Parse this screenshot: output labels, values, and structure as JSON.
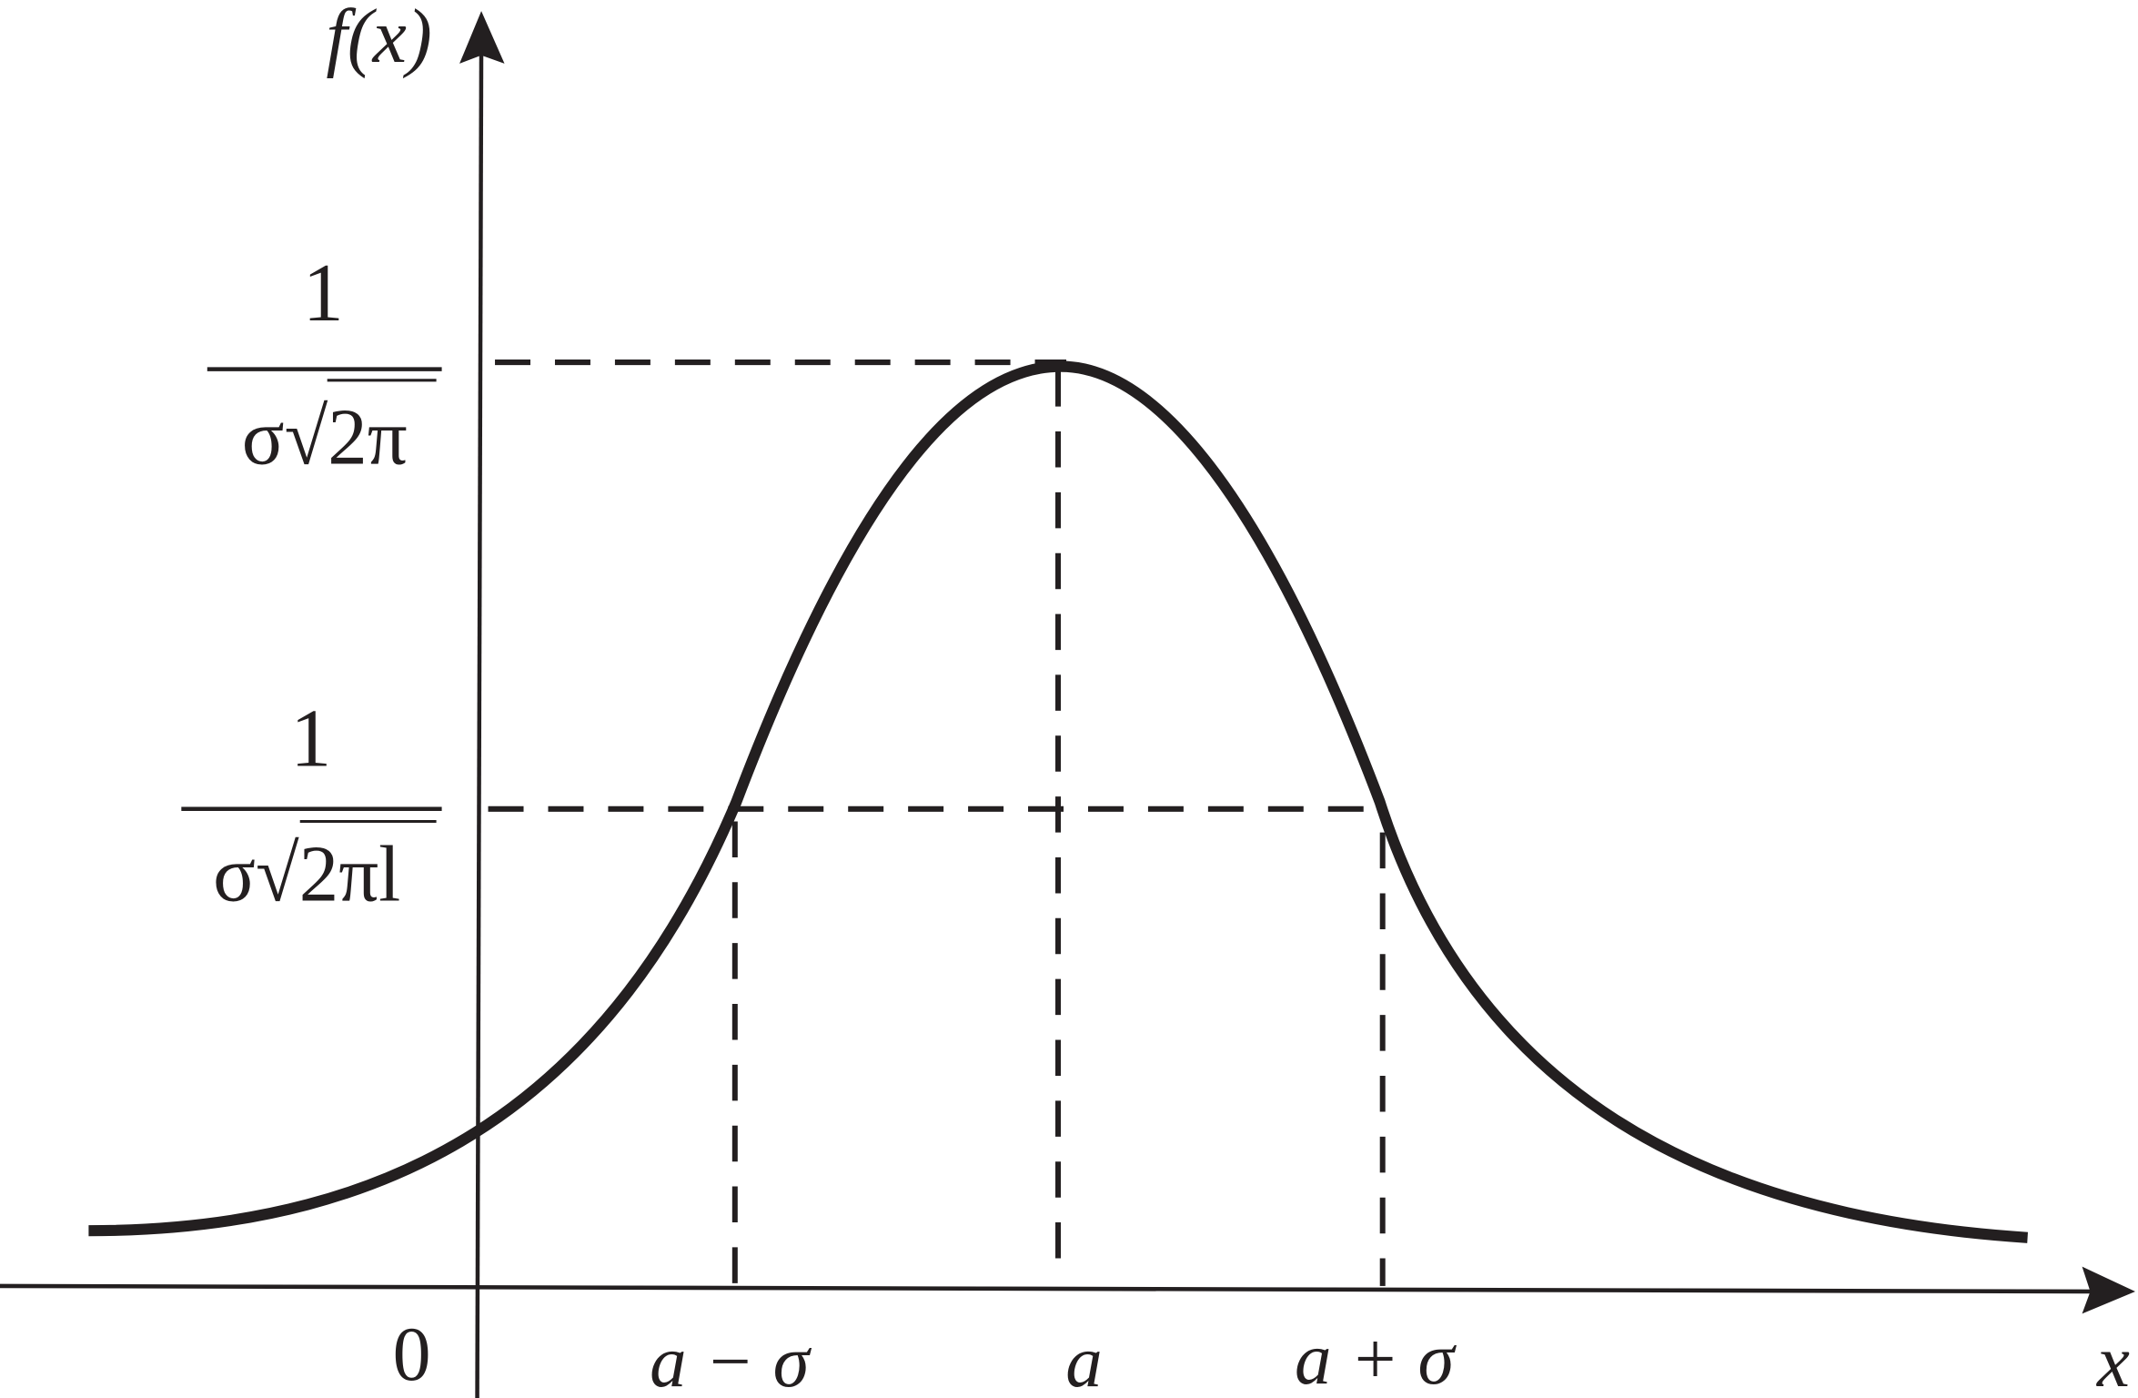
{
  "y_axis_label": "f(x)",
  "x_axis_label": "x",
  "origin_label": "0",
  "x_labels": [
    "a − σ",
    "a",
    "a + σ"
  ],
  "y_labels": [
    {
      "numerator": "1",
      "denominator": "σ√2π"
    },
    {
      "numerator": "1",
      "denominator": "σ√2πl"
    }
  ]
}
